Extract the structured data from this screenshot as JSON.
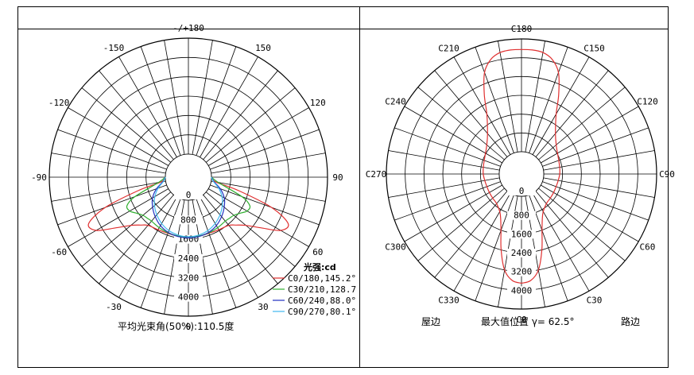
{
  "chart_data": [
    {
      "type": "polar-line",
      "angle_labels": [
        {
          "text": "-/+180",
          "angle": 180
        },
        {
          "text": "150",
          "angle": 150
        },
        {
          "text": "-150",
          "angle": -150
        },
        {
          "text": "120",
          "angle": 120
        },
        {
          "text": "-120",
          "angle": -120
        },
        {
          "text": "90",
          "angle": 90
        },
        {
          "text": "-90",
          "angle": -90
        },
        {
          "text": "60",
          "angle": 60
        },
        {
          "text": "-60",
          "angle": -60
        },
        {
          "text": "30",
          "angle": 30
        },
        {
          "text": "-30",
          "angle": -30
        },
        {
          "text": "0",
          "angle": 0
        }
      ],
      "radial_ticks": [
        "0",
        "800",
        "1600",
        "2400",
        "3200",
        "4000"
      ],
      "rmax": 4800,
      "legend_title": "光强:cd",
      "series": [
        {
          "name": "C0/180,145.2°",
          "color": "#e03030",
          "angles": [
            -90,
            -80,
            -75,
            -70,
            -65,
            -60,
            -55,
            -50,
            -45,
            -40,
            -30,
            -20,
            -10,
            0,
            10,
            20,
            30,
            40,
            45,
            50,
            55,
            60,
            65,
            70,
            75,
            80,
            90
          ],
          "values": [
            0,
            200,
            1200,
            2700,
            3600,
            3450,
            2700,
            2150,
            1850,
            1650,
            1560,
            1520,
            1520,
            1520,
            1520,
            1520,
            1560,
            1650,
            1850,
            2150,
            2700,
            3450,
            3600,
            2700,
            1200,
            200,
            0
          ]
        },
        {
          "name": "C30/210,128.7",
          "color": "#30b030",
          "angles": [
            -90,
            -80,
            -70,
            -65,
            -60,
            -55,
            -50,
            -45,
            -40,
            -30,
            -20,
            -10,
            0,
            10,
            20,
            30,
            40,
            45,
            50,
            55,
            60,
            65,
            70,
            80,
            90
          ],
          "values": [
            0,
            300,
            1400,
            1850,
            1850,
            1650,
            1500,
            1450,
            1420,
            1460,
            1500,
            1520,
            1520,
            1520,
            1500,
            1460,
            1420,
            1450,
            1500,
            1650,
            1850,
            1850,
            1400,
            300,
            0
          ]
        },
        {
          "name": "C60/240,88.0°",
          "color": "#2030c0",
          "angles": [
            -90,
            -80,
            -70,
            -60,
            -50,
            -40,
            -30,
            -20,
            -10,
            0,
            10,
            20,
            30,
            40,
            50,
            60,
            70,
            80,
            90
          ],
          "values": [
            0,
            120,
            450,
            760,
            980,
            1180,
            1360,
            1480,
            1540,
            1560,
            1540,
            1480,
            1360,
            1180,
            980,
            760,
            450,
            120,
            0
          ]
        },
        {
          "name": "C90/270,80.1°",
          "color": "#40b8f0",
          "angles": [
            -90,
            -80,
            -70,
            -60,
            -50,
            -40,
            -30,
            -20,
            -10,
            0,
            10,
            20,
            30,
            40,
            50,
            60,
            70,
            80,
            90
          ],
          "values": [
            0,
            100,
            380,
            650,
            880,
            1080,
            1260,
            1400,
            1480,
            1510,
            1480,
            1400,
            1260,
            1080,
            880,
            650,
            380,
            100,
            0
          ]
        }
      ],
      "caption": "平均光束角(50%):110.5度"
    },
    {
      "type": "polar-line",
      "angle_labels": [
        {
          "text": "C180",
          "angle": 180
        },
        {
          "text": "C150",
          "angle": 150
        },
        {
          "text": "C210",
          "angle": -150
        },
        {
          "text": "C120",
          "angle": 120
        },
        {
          "text": "C240",
          "angle": -120
        },
        {
          "text": "C90",
          "angle": 90
        },
        {
          "text": "C270",
          "angle": -90
        },
        {
          "text": "C60",
          "angle": 60
        },
        {
          "text": "C300",
          "angle": -60
        },
        {
          "text": "C30",
          "angle": 30
        },
        {
          "text": "C330",
          "angle": -30
        },
        {
          "text": "C0",
          "angle": 0
        }
      ],
      "radial_ticks": [
        "0",
        "800",
        "1600",
        "2400",
        "3200",
        "4000"
      ],
      "rmax": 4800,
      "series": [
        {
          "name": "",
          "color": "#e03030",
          "angles": [
            0,
            5,
            10,
            15,
            20,
            25,
            30,
            40,
            50,
            60,
            70,
            80,
            90,
            100,
            110,
            120,
            130,
            140,
            150,
            155,
            160,
            165,
            170,
            175,
            180,
            185,
            190,
            195,
            200,
            205,
            210,
            220,
            230,
            240,
            250,
            260,
            270,
            280,
            290,
            300,
            310,
            320,
            330,
            335,
            340,
            345,
            350,
            355,
            360
          ],
          "values": [
            3700,
            3600,
            3200,
            2400,
            1600,
            1150,
            900,
            700,
            650,
            630,
            620,
            640,
            680,
            700,
            740,
            820,
            980,
            1300,
            2000,
            2800,
            3650,
            4100,
            4300,
            4350,
            4350,
            4350,
            4300,
            4100,
            3650,
            2800,
            2000,
            1300,
            980,
            820,
            740,
            700,
            680,
            640,
            620,
            630,
            650,
            700,
            900,
            1150,
            1600,
            2400,
            3200,
            3600,
            3700
          ]
        }
      ],
      "bottom_labels": {
        "left": "屋边",
        "middle": "最大值位置 γ= 62.5°",
        "right": "路边"
      }
    }
  ]
}
